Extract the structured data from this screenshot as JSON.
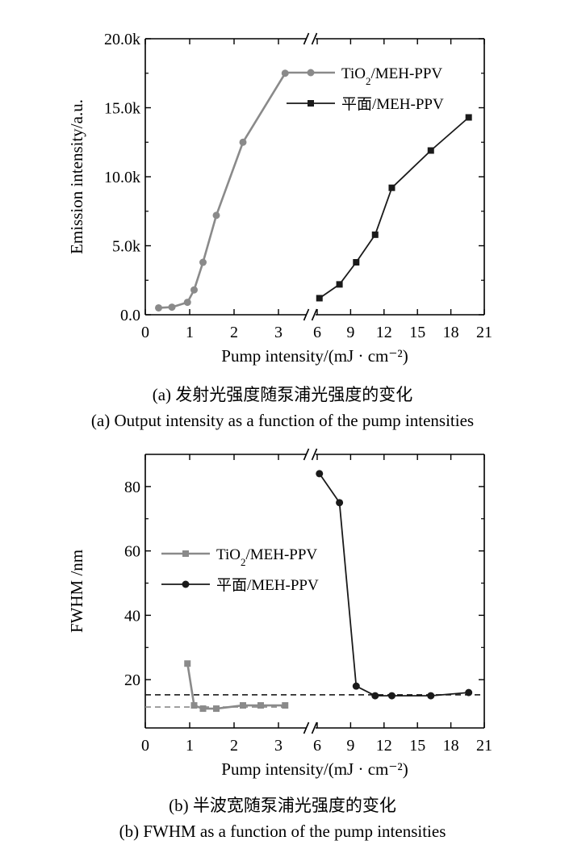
{
  "figure": {
    "panel_a": {
      "caption_cn": "(a) 发射光强度随泵浦光强度的变化",
      "caption_en": "(a) Output intensity as a function of the pump intensities"
    },
    "panel_b": {
      "caption_cn": "(b) 半波宽随泵浦光强度的变化",
      "caption_en": "(b) FWHM as a function of the pump intensities"
    }
  },
  "colors": {
    "tio2": "#8a8a8a",
    "planar": "#1a1a1a",
    "axis": "#000000"
  },
  "chart_data": [
    {
      "id": "a",
      "type": "line",
      "title": "",
      "xlabel": "Pump intensity/(mJ · cm⁻²)",
      "ylabel": "Emission intensity/a.u.",
      "x_break": true,
      "x_ticks_left": [
        "0",
        "1",
        "2",
        "3"
      ],
      "x_ticks_right": [
        "6",
        "9",
        "12",
        "15",
        "18",
        "21"
      ],
      "xlim_left": [
        0,
        3.6
      ],
      "xlim_right": [
        6,
        21
      ],
      "ylim": [
        0,
        20000
      ],
      "y_ticks": [
        "0.0",
        "5.0k",
        "10.0k",
        "15.0k",
        "20.0k"
      ],
      "y_tick_values": [
        0,
        5000,
        10000,
        15000,
        20000
      ],
      "legend_position": "top-right",
      "series": [
        {
          "name": "TiO2/MEH-PPV",
          "marker": "circle",
          "segment": "left",
          "x": [
            0.3,
            0.6,
            0.95,
            1.1,
            1.3,
            1.6,
            2.2,
            3.15
          ],
          "y": [
            500,
            550,
            900,
            1800,
            3800,
            7200,
            12500,
            17500
          ]
        },
        {
          "name": "平面/MEH-PPV",
          "marker": "square",
          "segment": "right",
          "x": [
            6.2,
            8.0,
            9.5,
            11.2,
            12.7,
            16.2,
            19.6
          ],
          "y": [
            1200,
            2200,
            3800,
            5800,
            9200,
            11900,
            14300
          ]
        }
      ]
    },
    {
      "id": "b",
      "type": "line",
      "title": "",
      "xlabel": "Pump intensity/(mJ · cm⁻²)",
      "ylabel": "FWHM /nm",
      "x_break": true,
      "x_ticks_left": [
        "0",
        "1",
        "2",
        "3"
      ],
      "x_ticks_right": [
        "6",
        "9",
        "12",
        "15",
        "18",
        "21"
      ],
      "xlim_left": [
        0,
        3.6
      ],
      "xlim_right": [
        6,
        21
      ],
      "ylim": [
        5,
        90
      ],
      "y_ticks": [
        "20",
        "40",
        "60",
        "80"
      ],
      "y_tick_values": [
        20,
        40,
        60,
        80
      ],
      "legend_position": "center-left",
      "series": [
        {
          "name": "TiO2/MEH-PPV",
          "marker": "square",
          "segment": "left",
          "x": [
            0.95,
            1.1,
            1.3,
            1.6,
            2.2,
            2.6,
            3.15
          ],
          "y": [
            25,
            12,
            11,
            11,
            12,
            12,
            12
          ]
        },
        {
          "name": "平面/MEH-PPV",
          "marker": "circle",
          "segment": "right",
          "x": [
            6.2,
            8.0,
            9.5,
            11.2,
            12.7,
            16.2,
            19.6
          ],
          "y": [
            84,
            75,
            18,
            15,
            15,
            15,
            16
          ]
        }
      ],
      "reference_lines": [
        {
          "series": "平面/MEH-PPV",
          "y": 15.3,
          "style": "dashed"
        },
        {
          "series": "TiO2/MEH-PPV",
          "y": 11.5,
          "style": "dashed"
        }
      ]
    }
  ]
}
